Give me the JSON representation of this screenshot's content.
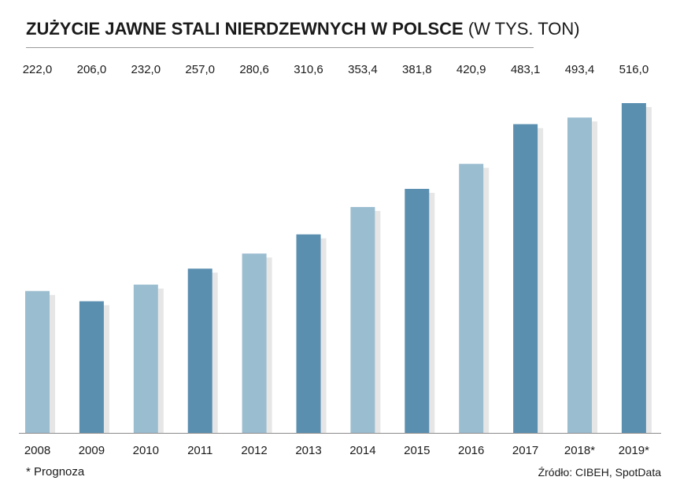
{
  "chart_data": {
    "type": "bar",
    "title": "ZUŻYCIE JAWNE STALI NIERDZEWNYCH W POLSCE",
    "title_unit": "(W TYS. TON)",
    "categories": [
      "2008",
      "2009",
      "2010",
      "2011",
      "2012",
      "2013",
      "2014",
      "2015",
      "2016",
      "2017",
      "2018*",
      "2019*"
    ],
    "values": [
      222.0,
      206.0,
      232.0,
      257.0,
      280.6,
      310.6,
      353.4,
      381.8,
      420.9,
      483.1,
      493.4,
      516.0
    ],
    "value_labels": [
      "222,0",
      "206,0",
      "232,0",
      "257,0",
      "280,6",
      "310,6",
      "353,4",
      "381,8",
      "420,9",
      "483,1",
      "493,4",
      "516,0"
    ],
    "ylim": [
      0,
      516
    ],
    "xlabel": "",
    "ylabel": "",
    "grid": false,
    "colors": {
      "light": "#9bbdd0",
      "dark": "#5b8fb0",
      "shadow": "#d2d2d2",
      "baseline": "#8c8c8c"
    }
  },
  "footnote": "* Prognoza",
  "source": "Źródło: CIBEH, SpotData"
}
